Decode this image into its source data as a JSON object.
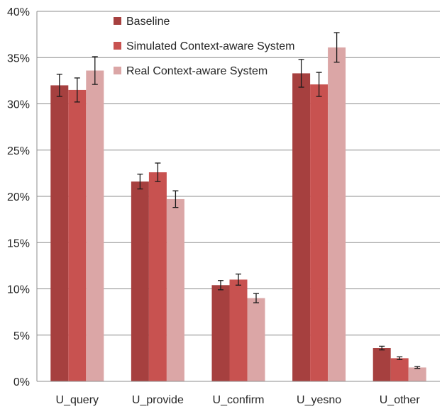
{
  "chart_data": {
    "type": "bar",
    "categories": [
      "U_query",
      "U_provide",
      "U_confirm",
      "U_yesno",
      "U_other"
    ],
    "series": [
      {
        "name": "Baseline",
        "color": "#a6403f",
        "values": [
          32.0,
          21.6,
          10.4,
          33.3,
          3.6
        ],
        "error": [
          1.2,
          0.8,
          0.5,
          1.5,
          0.2
        ]
      },
      {
        "name": "Simulated Context-aware System",
        "color": "#c85250",
        "values": [
          31.5,
          22.6,
          11.0,
          32.1,
          2.5
        ],
        "error": [
          1.3,
          1.0,
          0.6,
          1.3,
          0.15
        ]
      },
      {
        "name": "Real Context-aware System",
        "color": "#dba6a6",
        "values": [
          33.6,
          19.7,
          9.0,
          36.1,
          1.5
        ],
        "error": [
          1.5,
          0.9,
          0.5,
          1.6,
          0.1
        ]
      }
    ],
    "y_ticks": [
      "0%",
      "5%",
      "10%",
      "15%",
      "20%",
      "25%",
      "30%",
      "35%",
      "40%"
    ],
    "ylim": [
      0,
      40
    ],
    "grid": true,
    "legend_position": "top-center"
  }
}
